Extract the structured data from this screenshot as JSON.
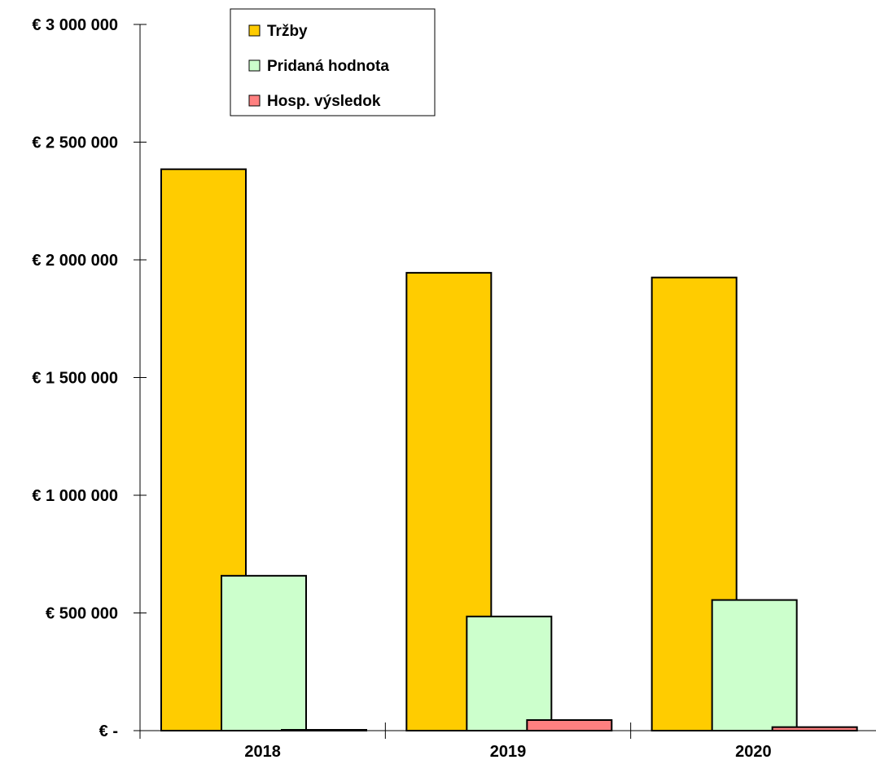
{
  "chart_data": {
    "type": "bar",
    "title": "",
    "xlabel": "",
    "ylabel": "",
    "categories": [
      "2018",
      "2019",
      "2020"
    ],
    "series": [
      {
        "name": "Tržby",
        "color": "#ffcc00",
        "values": [
          2385000,
          1945000,
          1925000
        ]
      },
      {
        "name": "Pridaná hodnota",
        "color": "#ccffcc",
        "values": [
          658000,
          485000,
          555000
        ]
      },
      {
        "name": "Hosp. výsledok",
        "color": "#ff8080",
        "values": [
          0,
          45000,
          15000
        ]
      }
    ],
    "ylim": [
      0,
      3000000
    ],
    "y_ticks": [
      {
        "value": 0,
        "label": "€ -"
      },
      {
        "value": 500000,
        "label": "€ 500 000"
      },
      {
        "value": 1000000,
        "label": "€ 1 000 000"
      },
      {
        "value": 1500000,
        "label": "€ 1 500 000"
      },
      {
        "value": 2000000,
        "label": "€ 2 000 000"
      },
      {
        "value": 2500000,
        "label": "€ 2 500 000"
      },
      {
        "value": 3000000,
        "label": "€ 3 000 000"
      }
    ],
    "grid": false,
    "legend_position": "top-left"
  }
}
